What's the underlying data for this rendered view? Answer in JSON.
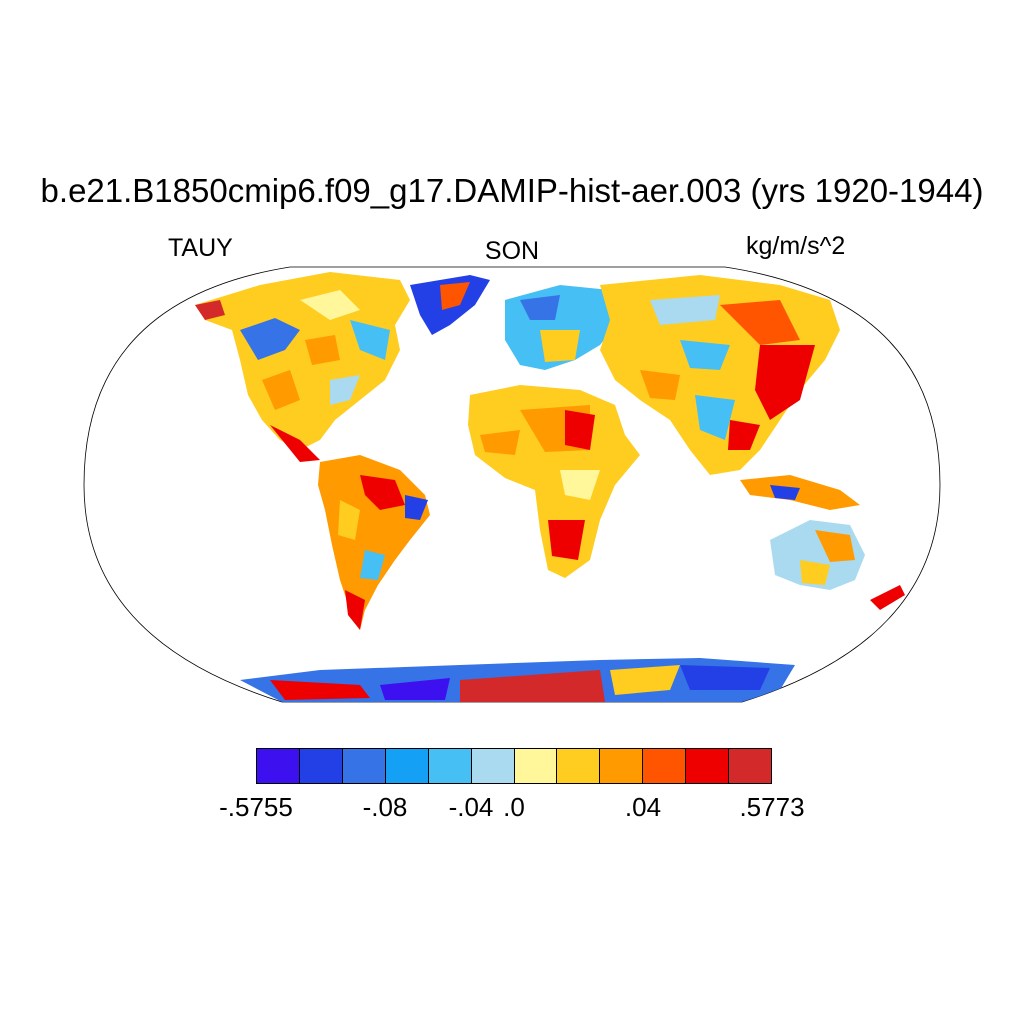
{
  "title": "b.e21.B1850cmip6.f09_g17.DAMIP-hist-aer.003 (yrs 1920-1944)",
  "variable": "TAUY",
  "season": "SON",
  "units": "kg/m/s^2",
  "colorbar": {
    "colors": [
      "#3d10f0",
      "#2340e6",
      "#3573e6",
      "#14a0f5",
      "#46bff5",
      "#a9daf0",
      "#fff79a",
      "#ffcc20",
      "#ff9a00",
      "#ff5400",
      "#ee0000",
      "#d4292a"
    ],
    "labels": [
      {
        "text": "-.5755",
        "index": 0
      },
      {
        "text": "-.08",
        "index": 3
      },
      {
        "text": "-.04",
        "index": 5
      },
      {
        "text": ".0",
        "index": 6
      },
      {
        "text": ".04",
        "index": 9
      },
      {
        "text": ".5773",
        "index": 12
      }
    ]
  },
  "map": {
    "projection": "Robinson",
    "data_coverage": "land only"
  }
}
